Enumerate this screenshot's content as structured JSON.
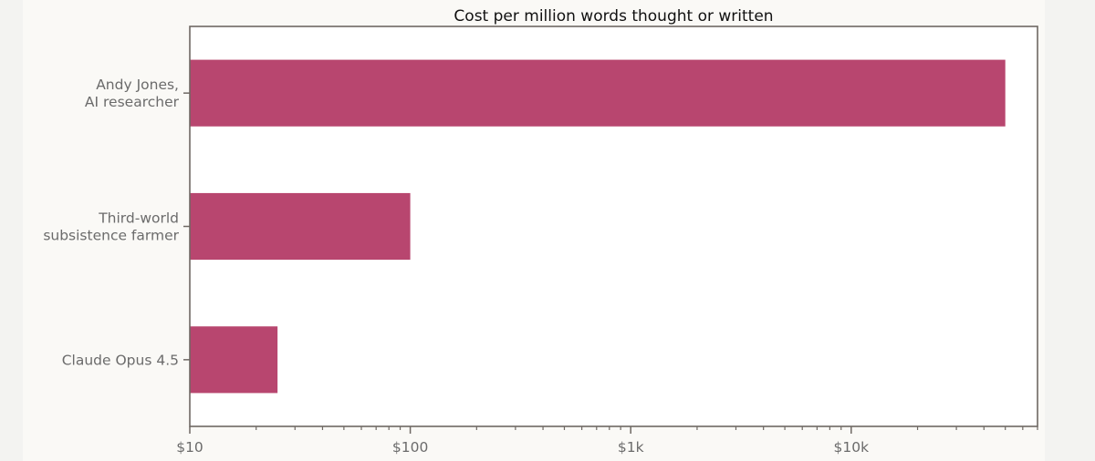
{
  "chart_data": {
    "type": "bar",
    "orientation": "horizontal",
    "title": "Cost per million words thought or written",
    "xlabel": "",
    "ylabel": "",
    "x_scale": "log",
    "xlim": [
      10,
      70000
    ],
    "grid": false,
    "bar_color": "#b8466f",
    "categories": [
      [
        "Andy Jones,",
        "AI researcher"
      ],
      [
        "Third-world",
        "subsistence farmer"
      ],
      [
        "Claude Opus 4.5"
      ]
    ],
    "values": [
      50000,
      100,
      25
    ],
    "x_ticks": [
      {
        "value": 10,
        "label": "$10"
      },
      {
        "value": 100,
        "label": "$100"
      },
      {
        "value": 1000,
        "label": "$1k"
      },
      {
        "value": 10000,
        "label": "$10k"
      }
    ]
  }
}
